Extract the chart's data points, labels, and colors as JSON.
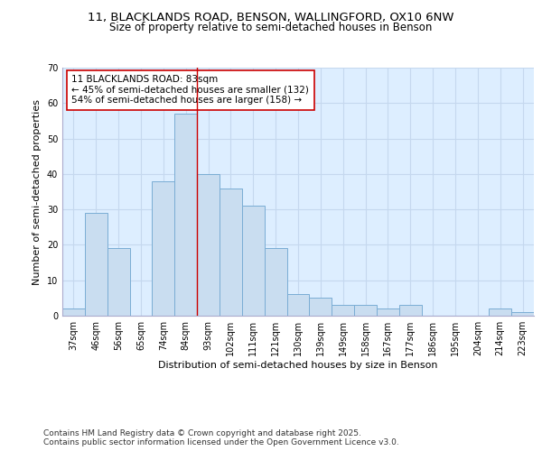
{
  "title_line1": "11, BLACKLANDS ROAD, BENSON, WALLINGFORD, OX10 6NW",
  "title_line2": "Size of property relative to semi-detached houses in Benson",
  "categories": [
    "37sqm",
    "46sqm",
    "56sqm",
    "65sqm",
    "74sqm",
    "84sqm",
    "93sqm",
    "102sqm",
    "111sqm",
    "121sqm",
    "130sqm",
    "139sqm",
    "149sqm",
    "158sqm",
    "167sqm",
    "177sqm",
    "186sqm",
    "195sqm",
    "204sqm",
    "214sqm",
    "223sqm"
  ],
  "values": [
    2,
    29,
    19,
    0,
    38,
    57,
    40,
    36,
    31,
    19,
    6,
    5,
    3,
    3,
    2,
    3,
    0,
    0,
    0,
    2,
    1
  ],
  "bar_color": "#c9ddf0",
  "bar_edge_color": "#7aadd4",
  "subject_bar_index": 5,
  "subject_line_color": "#cc0000",
  "annotation_text": "11 BLACKLANDS ROAD: 83sqm\n← 45% of semi-detached houses are smaller (132)\n54% of semi-detached houses are larger (158) →",
  "annotation_box_color": "#ffffff",
  "annotation_box_edge": "#cc0000",
  "xlabel": "Distribution of semi-detached houses by size in Benson",
  "ylabel": "Number of semi-detached properties",
  "ylim": [
    0,
    70
  ],
  "yticks": [
    0,
    10,
    20,
    30,
    40,
    50,
    60,
    70
  ],
  "grid_color": "#c5d8ee",
  "background_color": "#ddeeff",
  "footnote": "Contains HM Land Registry data © Crown copyright and database right 2025.\nContains public sector information licensed under the Open Government Licence v3.0.",
  "title_fontsize": 9.5,
  "subtitle_fontsize": 8.5,
  "axis_label_fontsize": 8,
  "tick_fontsize": 7,
  "annotation_fontsize": 7.5,
  "footnote_fontsize": 6.5
}
